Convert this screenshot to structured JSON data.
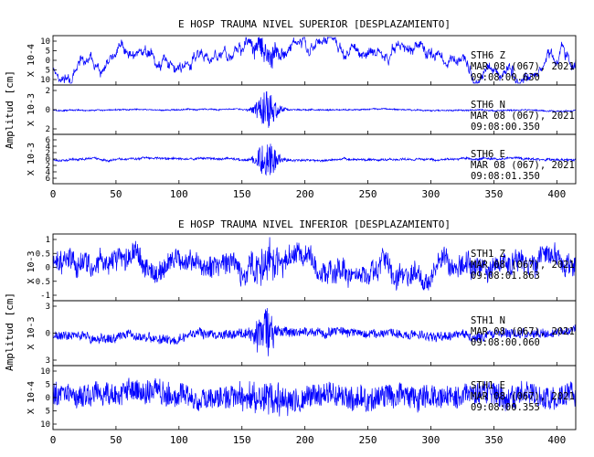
{
  "chart_data": [
    {
      "type": "line",
      "title": "E HOSP TRAUMA NIVEL SUPERIOR [DESPLAZAMIENTO]",
      "ylabel": "Amplitud [cm]",
      "xlim": [
        0,
        415
      ],
      "x_ticks": [
        0,
        50,
        100,
        150,
        200,
        250,
        300,
        350,
        400
      ],
      "grid": false,
      "series_color": "#0000ff",
      "panels": [
        {
          "scale_label": "X 10-4",
          "ylim": [
            -10,
            10
          ],
          "y_ticks": [
            "10",
            "5",
            "0",
            "5",
            "10"
          ],
          "station": "STH6  Z",
          "date": "MAR 08 (067), 2021",
          "time": "09:08:00.630",
          "base_amp": 0.18,
          "slow_amp": 0.55,
          "burst_amp": 0.55,
          "burst_center": 170,
          "burst_width": 12,
          "seed": 11
        },
        {
          "scale_label": "X 10-3",
          "ylim": [
            -3,
            3
          ],
          "y_ticks": [
            "2",
            "0",
            "2"
          ],
          "station": "STH6  N",
          "date": "MAR 08 (067), 2021",
          "time": "09:08:00.350",
          "base_amp": 0.04,
          "slow_amp": 0.03,
          "burst_amp": 0.85,
          "burst_center": 170,
          "burst_width": 9,
          "seed": 23
        },
        {
          "scale_label": "X 10-3",
          "ylim": [
            -6,
            6
          ],
          "y_ticks": [
            "6",
            "4",
            "2",
            "0",
            "2",
            "4",
            "6"
          ],
          "station": "STH6  E",
          "date": "MAR 08 (067), 2021",
          "time": "09:08:01.350",
          "base_amp": 0.06,
          "slow_amp": 0.05,
          "burst_amp": 0.8,
          "burst_center": 170,
          "burst_width": 9,
          "seed": 37
        }
      ]
    },
    {
      "type": "line",
      "title": "E HOSP TRAUMA NIVEL INFERIOR [DESPLAZAMIENTO]",
      "ylabel": "Amplitud [cm]",
      "xlim": [
        0,
        415
      ],
      "x_ticks": [
        0,
        50,
        100,
        150,
        200,
        250,
        300,
        350,
        400
      ],
      "grid": false,
      "series_color": "#0000ff",
      "panels": [
        {
          "scale_label": "X 10-3",
          "ylim": [
            -1.2,
            1.7
          ],
          "y_ticks": [
            "1",
            "0.5",
            "0",
            "-0.5",
            "-1"
          ],
          "station": "STH1  Z",
          "date": "MAR 08 (067), 2021",
          "time": "09:08:01.863",
          "base_amp": 0.45,
          "slow_amp": 0.35,
          "burst_amp": 0.5,
          "burst_center": 168,
          "burst_width": 14,
          "seed": 51
        },
        {
          "scale_label": "X 10-3",
          "ylim": [
            -4,
            4
          ],
          "y_ticks": [
            "3",
            "0",
            "3"
          ],
          "station": "STH1  N",
          "date": "MAR 08 (067), 2021",
          "time": "09:08:00.060",
          "base_amp": 0.2,
          "slow_amp": 0.1,
          "burst_amp": 0.75,
          "burst_center": 168,
          "burst_width": 10,
          "seed": 67
        },
        {
          "scale_label": "X 10-4",
          "ylim": [
            -12,
            12
          ],
          "y_ticks": [
            "10",
            "5",
            "0",
            "5",
            "10"
          ],
          "station": "STH1  E",
          "date": "MAR 08 (067), 2021",
          "time": "09:08:00.355",
          "base_amp": 0.55,
          "slow_amp": 0.15,
          "burst_amp": 0.45,
          "burst_center": 168,
          "burst_width": 14,
          "seed": 83
        }
      ]
    }
  ]
}
